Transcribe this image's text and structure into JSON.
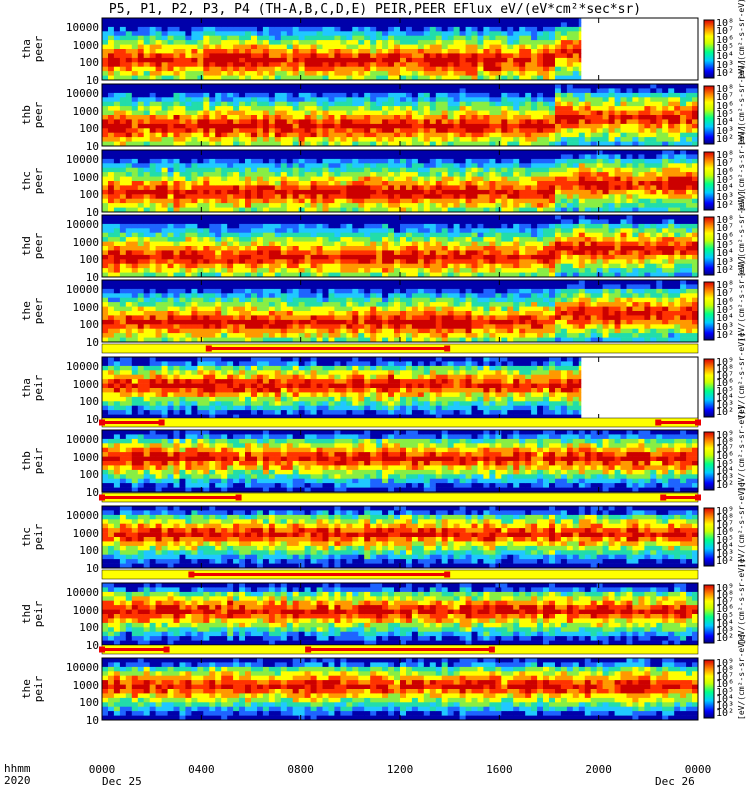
{
  "title": "P5, P1, P2, P3, P4 (TH-A,B,C,D,E) PEIR,PEER EFlux eV/(eV*cm²*sec*sr)",
  "chart_data": {
    "type": "heatmap",
    "xlabel_top": "hhmm",
    "xlabel_bottom": "2020",
    "x_ticks": [
      "0000",
      "0400",
      "0800",
      "1200",
      "1600",
      "2000",
      "0000"
    ],
    "x_dates": [
      "Dec 25",
      "Dec 26"
    ],
    "y_ticks": [
      "10000",
      "1000",
      "100",
      "10"
    ],
    "colorbar_title": "[eV/(cm²-s-sr-eV)]",
    "colorbar_ticks": {
      "electron": [
        "10⁸",
        "10⁷",
        "10⁶",
        "10⁵",
        "10⁴",
        "10³",
        "10²"
      ],
      "ion": [
        "10⁹",
        "10⁸",
        "10⁷",
        "10⁶",
        "10⁵",
        "10⁴",
        "10³",
        "10²"
      ]
    },
    "panels": [
      {
        "label": "tha peer",
        "species": "electron",
        "data_end_hour": 19.3
      },
      {
        "label": "thb peer",
        "species": "electron",
        "data_end_hour": 24
      },
      {
        "label": "thc peer",
        "species": "electron",
        "data_end_hour": 24
      },
      {
        "label": "thd peer",
        "species": "electron",
        "data_end_hour": 24
      },
      {
        "label": "the peer",
        "species": "electron",
        "data_end_hour": 24
      },
      {
        "label": "tha peir",
        "species": "ion",
        "data_end_hour": 19.3
      },
      {
        "label": "thb peir",
        "species": "ion",
        "data_end_hour": 24
      },
      {
        "label": "thc peir",
        "species": "ion",
        "data_end_hour": 24
      },
      {
        "label": "thd peir",
        "species": "ion",
        "data_end_hour": 24
      },
      {
        "label": "the peir",
        "species": "ion",
        "data_end_hour": 24
      }
    ],
    "mode_bars": [
      {
        "above": "tha peir",
        "segments": [
          [
            4.3,
            13.9
          ]
        ]
      },
      {
        "above": "thb peir",
        "segments": [
          [
            0.0,
            2.4
          ],
          [
            22.4,
            24.0
          ]
        ]
      },
      {
        "above": "thc peir",
        "segments": [
          [
            0.0,
            5.5
          ],
          [
            22.6,
            24.0
          ]
        ]
      },
      {
        "above": "thd peir",
        "segments": [
          [
            3.6,
            13.9
          ]
        ]
      },
      {
        "above": "the peir",
        "segments": [
          [
            0.0,
            2.6
          ],
          [
            8.3,
            15.7
          ]
        ]
      }
    ]
  },
  "colors": {
    "bar_red": "#ee0000",
    "bar_yellow": "#ffff00",
    "colormap": [
      "#0000aa",
      "#1e64ff",
      "#20c8ff",
      "#22ddaa",
      "#88ee44",
      "#ffff00",
      "#ff9900",
      "#ff3300",
      "#cc0000"
    ]
  }
}
